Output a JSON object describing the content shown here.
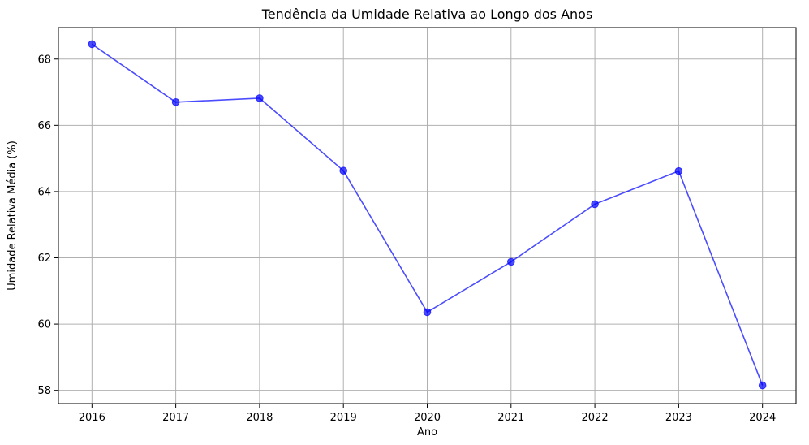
{
  "chart_data": {
    "type": "line",
    "title": "Tendência da Umidade Relativa ao Longo dos Anos",
    "xlabel": "Ano",
    "ylabel": "Umidade Relativa Média (%)",
    "x": [
      2016,
      2017,
      2018,
      2019,
      2020,
      2021,
      2022,
      2023,
      2024
    ],
    "series": [
      {
        "values": [
          68.45,
          66.7,
          66.82,
          64.63,
          60.36,
          61.88,
          63.62,
          64.62,
          58.15
        ],
        "color": "#0000ff",
        "alpha": 0.7,
        "marker": "circle"
      }
    ],
    "xlim": [
      2015.6,
      2024.4
    ],
    "ylim": [
      57.6,
      68.95
    ],
    "x_ticks": [
      "2016",
      "2017",
      "2018",
      "2019",
      "2020",
      "2021",
      "2022",
      "2023",
      "2024"
    ],
    "y_ticks": [
      "58",
      "60",
      "62",
      "64",
      "66",
      "68"
    ],
    "y_tick_values": [
      58,
      60,
      62,
      64,
      66,
      68
    ],
    "grid": true,
    "legend": "none"
  }
}
